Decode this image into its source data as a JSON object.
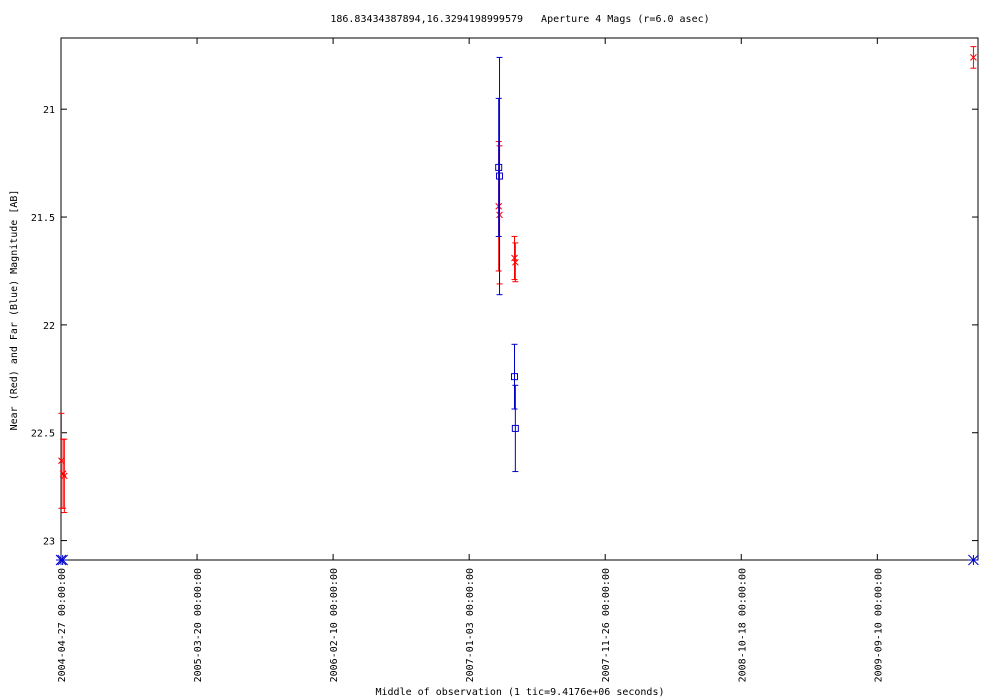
{
  "chart_data": {
    "type": "scatter",
    "title": "186.83434387894,16.3294198999579   Aperture 4 Mags (r=6.0 asec)",
    "xlabel": "Middle of observation (1 tic=9.4176e+06 seconds)",
    "ylabel": "Near (Red) and Far (Blue) Magnitude [AB]",
    "x_ticks": [
      "2004-04-27 00:00:00",
      "2005-03-20 00:00:00",
      "2006-02-10 00:00:00",
      "2007-01-03 00:00:00",
      "2007-11-26 00:00:00",
      "2008-10-18 00:00:00",
      "2009-09-10 00:00:00"
    ],
    "x_range": [
      "2004-04-27",
      "2010-05-10"
    ],
    "y_ticks": [
      "21",
      "21.5",
      "22",
      "22.5",
      "23"
    ],
    "ylim": [
      20.67,
      23.09
    ],
    "y_inverted": true,
    "grid": false,
    "series": [
      {
        "name": "Near",
        "color": "#ff0000",
        "marker": "x",
        "points": [
          {
            "x": "2004-04-28",
            "y": 22.63,
            "err": 0.22
          },
          {
            "x": "2004-05-02",
            "y": 22.69,
            "err": 0.16
          },
          {
            "x": "2004-05-05",
            "y": 22.7,
            "err": 0.17
          },
          {
            "x": "2007-03-15",
            "y": 21.45,
            "err": 0.3
          },
          {
            "x": "2007-03-17",
            "y": 21.49,
            "err": 0.32
          },
          {
            "x": "2007-04-22",
            "y": 21.69,
            "err": 0.1
          },
          {
            "x": "2007-04-24",
            "y": 21.71,
            "err": 0.09
          },
          {
            "x": "2010-04-29",
            "y": 20.76,
            "err": 0.05
          }
        ]
      },
      {
        "name": "Far",
        "color": "#0000cc",
        "marker": "square",
        "points": [
          {
            "x": "2007-03-15",
            "y": 21.27,
            "err": 0.32
          },
          {
            "x": "2007-03-17",
            "y": 21.31,
            "err": 0.55
          },
          {
            "x": "2007-04-22",
            "y": 22.24,
            "err": 0.15
          },
          {
            "x": "2007-04-24",
            "y": 22.48,
            "err": 0.2
          }
        ]
      }
    ],
    "limit_markers": [
      {
        "x": "2004-04-27",
        "y": 23.09,
        "color": "#0000cc"
      },
      {
        "x": "2004-05-01",
        "y": 23.09,
        "color": "#0000cc"
      },
      {
        "x": "2010-04-29",
        "y": 23.09,
        "color": "#0000cc"
      }
    ]
  }
}
